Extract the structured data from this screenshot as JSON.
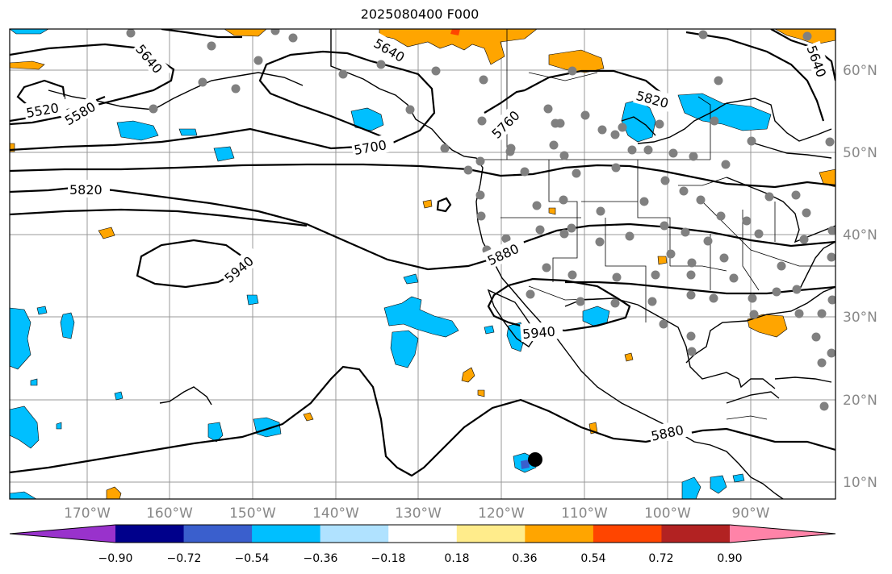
{
  "title": "2025080400 F000",
  "lon_labels": [
    "170°W",
    "160°W",
    "150°W",
    "140°W",
    "130°W",
    "120°W",
    "110°W",
    "100°W",
    "90°W"
  ],
  "lat_labels": [
    "60°N",
    "50°N",
    "40°N",
    "30°N",
    "20°N",
    "10°N"
  ],
  "contour_labels": [
    "5520",
    "5580",
    "5640",
    "5640",
    "5640",
    "5700",
    "5760",
    "5820",
    "5820",
    "5880",
    "5880",
    "5940",
    "5940"
  ],
  "colorbar": {
    "tick_labels": [
      "−0.90",
      "−0.72",
      "−0.54",
      "−0.36",
      "−0.18",
      "0.18",
      "0.36",
      "0.54",
      "0.72",
      "0.90"
    ],
    "colors": [
      "#9932cc",
      "#00008b",
      "#3a5fcd",
      "#00bfff",
      "#b0e2ff",
      "#ffffff",
      "#ffec8b",
      "#ffa500",
      "#ff4500",
      "#b22222",
      "#ff83a8"
    ]
  },
  "colors": {
    "positive": "#ffa500",
    "negative": "#00bfff",
    "grid": "#888888",
    "station": "#808080"
  }
}
